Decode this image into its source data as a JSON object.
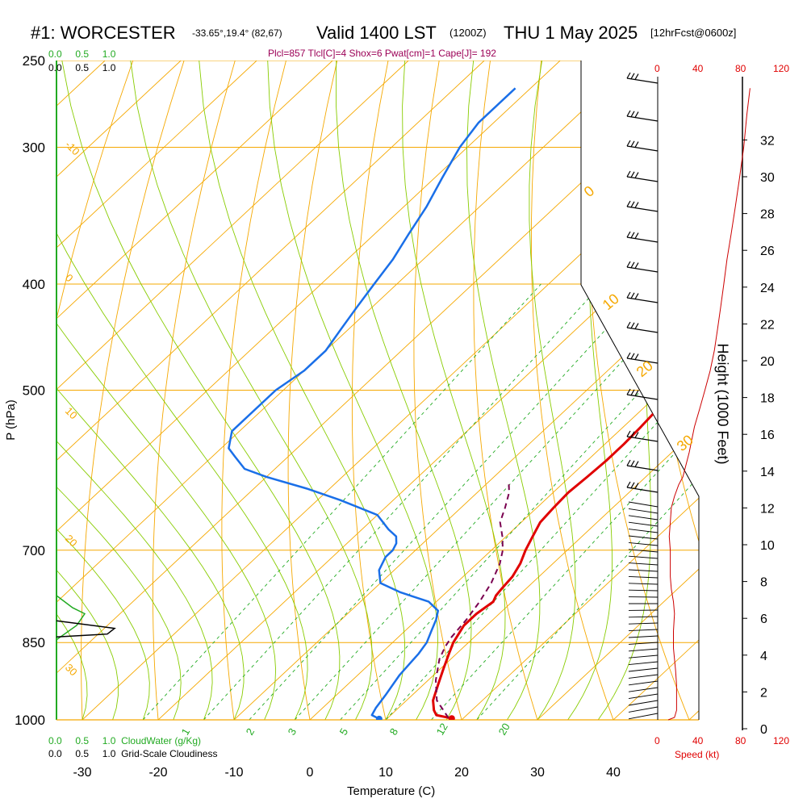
{
  "header": {
    "station": "#1: WORCESTER",
    "coords": "-33.65°,19.4° (82,67)",
    "valid": "Valid 1400 LST",
    "zulu": "(1200Z)",
    "date": "THU 1 May 2025",
    "fcst": "[12hrFcst@0600z]",
    "params": "Plcl=857 Tlcl[C]=4 Shox=6 Pwat[cm]=1 Cape[J]= 192"
  },
  "labels": {
    "pressure_axis": "P (hPa)",
    "temp_axis": "Temperature (C)",
    "height_axis": "Height (1000 Feet)",
    "cloudwater": "CloudWater (g/Kg)",
    "cloudiness": "Grid-Scale Cloudiness",
    "speed": "Speed (kt)"
  },
  "scales": {
    "cloud_ticks": [
      "0.0",
      "0.5",
      "1.0"
    ],
    "speed_ticks": [
      "0",
      "40",
      "80",
      "120"
    ]
  },
  "colors": {
    "isobar": "#f5a800",
    "isotherm": "#f5a800",
    "dry_adiabat": "#f5a800",
    "moist_adiabat": "#88cc00",
    "mixing_ratio": "#22aa22",
    "temperature": "#e00000",
    "dewpoint": "#1a6fe8",
    "parcel": "#7a0050",
    "cloudwater": "#22aa22",
    "wind_speed": "#cc0000"
  },
  "chart_data": {
    "type": "line",
    "title": "#1: WORCESTER",
    "xlabel": "Temperature (C)",
    "ylabel": "P (hPa)",
    "y2label": "Height (1000 Feet)",
    "xlim": [
      -34,
      46
    ],
    "ylim": [
      1000,
      250
    ],
    "yscale": "log",
    "x_ticks": [
      -30,
      -20,
      -10,
      0,
      10,
      20,
      30,
      40
    ],
    "p_ticks": [
      250,
      300,
      400,
      500,
      700,
      850,
      1000
    ],
    "height_ticks": [
      0,
      2,
      4,
      6,
      8,
      10,
      12,
      14,
      16,
      18,
      20,
      22,
      24,
      26,
      28,
      30,
      32
    ],
    "isotherm_labels": [
      -10,
      0,
      10,
      20,
      30
    ],
    "moist_adiabat_labels": [
      -30,
      -20,
      -10,
      0,
      10,
      20,
      30
    ],
    "mixing_ratio_labels": [
      "1",
      "2",
      "3",
      "5",
      "8",
      "12",
      "20"
    ],
    "series": [
      {
        "name": "Temperature",
        "points": [
          [
            18.5,
            997
          ],
          [
            16,
            990
          ],
          [
            15,
            980
          ],
          [
            13.5,
            960
          ],
          [
            12,
            930
          ],
          [
            10.5,
            900
          ],
          [
            9,
            870
          ],
          [
            8,
            850
          ],
          [
            7,
            820
          ],
          [
            7,
            800
          ],
          [
            7.5,
            780
          ],
          [
            7,
            770
          ],
          [
            6.8,
            760
          ],
          [
            6.5,
            740
          ],
          [
            5.7,
            720
          ],
          [
            4.5,
            700
          ],
          [
            3.5,
            680
          ],
          [
            2.5,
            660
          ],
          [
            2.2,
            640
          ],
          [
            2,
            620
          ],
          [
            2.3,
            600
          ],
          [
            2.5,
            580
          ],
          [
            2.5,
            560
          ],
          [
            2.3,
            540
          ],
          [
            2,
            520
          ],
          [
            1.5,
            500
          ],
          [
            0.5,
            480
          ],
          [
            -1,
            460
          ],
          [
            -2.5,
            440
          ],
          [
            -4,
            420
          ],
          [
            -5,
            400
          ],
          [
            -6.5,
            380
          ],
          [
            -8.5,
            360
          ],
          [
            -10,
            340
          ],
          [
            -11.5,
            320
          ],
          [
            -13,
            300
          ],
          [
            -15,
            280
          ],
          [
            -16.5,
            265
          ]
        ]
      },
      {
        "name": "Dewpoint",
        "points": [
          [
            9,
            998
          ],
          [
            7.5,
            990
          ],
          [
            7,
            975
          ],
          [
            6.5,
            950
          ],
          [
            5.5,
            910
          ],
          [
            5,
            870
          ],
          [
            4.5,
            850
          ],
          [
            3.5,
            830
          ],
          [
            2.5,
            810
          ],
          [
            1.5,
            795
          ],
          [
            -1,
            780
          ],
          [
            -6,
            765
          ],
          [
            -10,
            750
          ],
          [
            -12,
            730
          ],
          [
            -13,
            710
          ],
          [
            -13,
            700
          ],
          [
            -13.5,
            690
          ],
          [
            -14.5,
            680
          ],
          [
            -16.5,
            670
          ],
          [
            -20,
            650
          ],
          [
            -27,
            630
          ],
          [
            -33,
            615
          ],
          [
            -40,
            600
          ],
          [
            -44,
            590
          ],
          [
            -47,
            575
          ],
          [
            -49,
            565
          ],
          [
            -51,
            545
          ],
          [
            -51,
            500
          ],
          [
            -50,
            480
          ],
          [
            -50,
            460
          ],
          [
            -51,
            440
          ],
          [
            -52,
            420
          ],
          [
            -53,
            400
          ],
          [
            -54,
            380
          ],
          [
            -55.5,
            360
          ],
          [
            -57,
            340
          ],
          [
            -59,
            320
          ],
          [
            -61,
            300
          ],
          [
            -62,
            285
          ],
          [
            -62,
            265
          ]
        ]
      },
      {
        "name": "Parcel",
        "points": [
          [
            18,
            996
          ],
          [
            14,
            960
          ],
          [
            11,
            920
          ],
          [
            8.5,
            880
          ],
          [
            7.5,
            857
          ],
          [
            7,
            840
          ],
          [
            6.5,
            810
          ],
          [
            5.7,
            780
          ],
          [
            4.6,
            750
          ],
          [
            3,
            720
          ],
          [
            1.5,
            700
          ],
          [
            -0.5,
            680
          ],
          [
            -2.8,
            660
          ],
          [
            -4.2,
            640
          ],
          [
            -5.8,
            620
          ],
          [
            -7.5,
            605
          ]
        ]
      }
    ],
    "surface_points": [
      {
        "name": "Temperature",
        "x": 18.5,
        "p": 997
      },
      {
        "name": "Dewpoint",
        "x": 9,
        "p": 998
      }
    ],
    "wind_speed_profile": {
      "x_units": "kt",
      "points": [
        [
          10,
          1000
        ],
        [
          16,
          995
        ],
        [
          18,
          980
        ],
        [
          18,
          930
        ],
        [
          17,
          900
        ],
        [
          16,
          880
        ],
        [
          15,
          860
        ],
        [
          15,
          830
        ],
        [
          16,
          800
        ],
        [
          15,
          780
        ],
        [
          13,
          760
        ],
        [
          12,
          740
        ],
        [
          12,
          720
        ],
        [
          12,
          700
        ],
        [
          11,
          680
        ],
        [
          12,
          660
        ],
        [
          13,
          640
        ],
        [
          16,
          625
        ],
        [
          20,
          610
        ],
        [
          24,
          600
        ],
        [
          30,
          570
        ],
        [
          35,
          540
        ],
        [
          40,
          520
        ],
        [
          45,
          500
        ],
        [
          50,
          480
        ],
        [
          54,
          460
        ],
        [
          57,
          440
        ],
        [
          60,
          420
        ],
        [
          63,
          400
        ],
        [
          66,
          380
        ],
        [
          70,
          360
        ],
        [
          74,
          340
        ],
        [
          78,
          320
        ],
        [
          82,
          300
        ],
        [
          85,
          280
        ],
        [
          88,
          265
        ]
      ]
    },
    "cloudwater_profile": {
      "x_units": "g/Kg",
      "points": [
        [
          0,
          770
        ],
        [
          0.2,
          790
        ],
        [
          0.35,
          800
        ],
        [
          0.25,
          820
        ],
        [
          0.05,
          840
        ],
        [
          0,
          845
        ]
      ]
    },
    "cloudiness_profile": {
      "x_units": "fraction",
      "points": [
        [
          0,
          812
        ],
        [
          0.8,
          825
        ],
        [
          0.7,
          835
        ],
        [
          0,
          840
        ]
      ]
    }
  }
}
